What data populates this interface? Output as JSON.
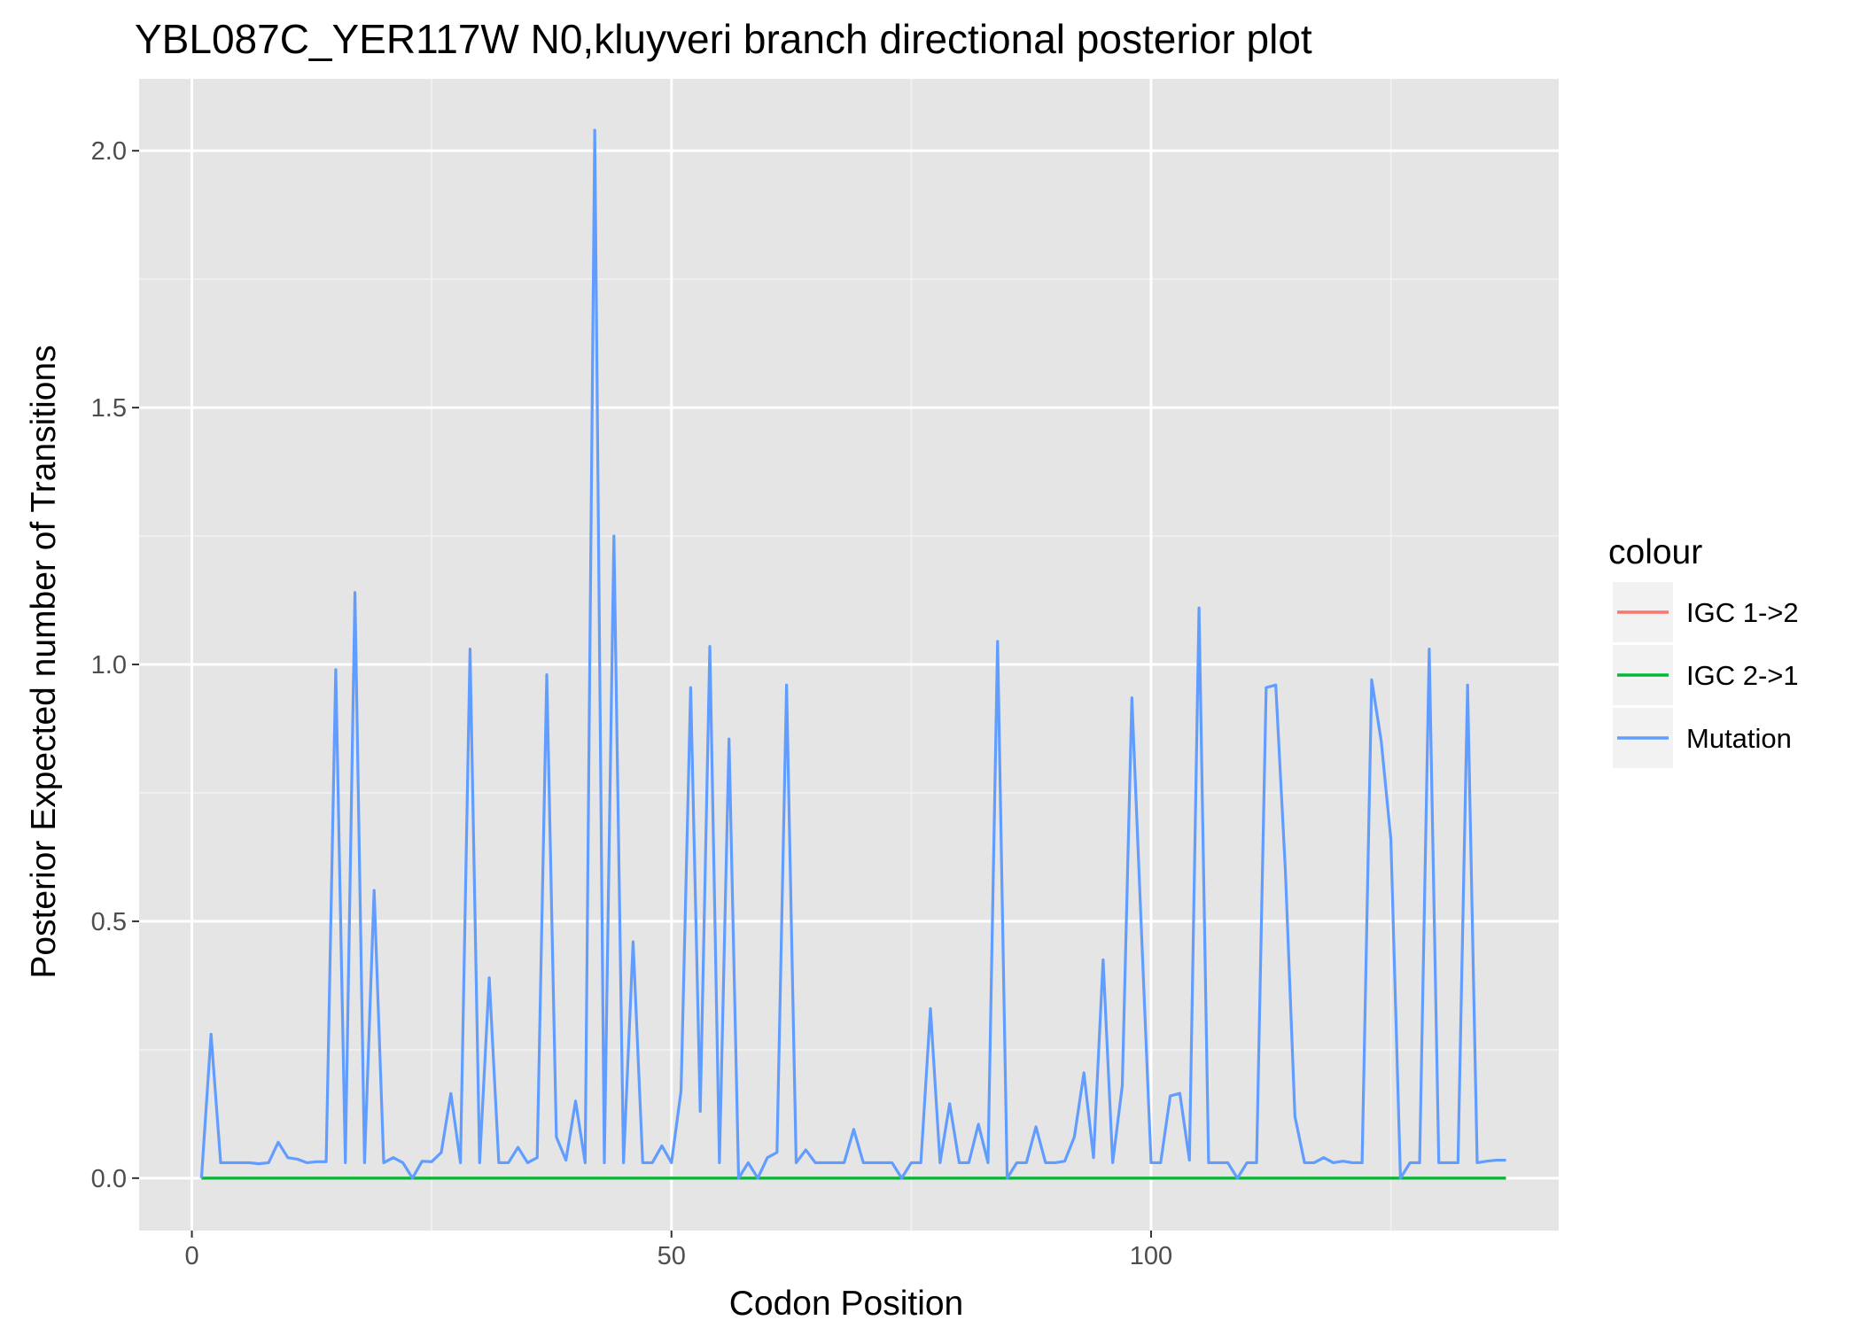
{
  "chart_data": {
    "type": "line",
    "title": "YBL087C_YER117W N0,kluyveri branch directional posterior plot",
    "xlabel": "Codon Position",
    "ylabel": "Posterior Expected number of Transitions",
    "xlim": [
      -5.5,
      142.5
    ],
    "ylim": [
      -0.102,
      2.14
    ],
    "x_ticks": [
      0,
      50,
      100
    ],
    "x_tick_labels": [
      "0",
      "50",
      "100"
    ],
    "y_ticks": [
      0.0,
      0.5,
      1.0,
      1.5,
      2.0
    ],
    "y_tick_labels": [
      "0.0",
      "0.5",
      "1.0",
      "1.5",
      "2.0"
    ],
    "grid": true,
    "legend_position": "right",
    "legend_title": "colour",
    "series": [
      {
        "name": "IGC 1->2",
        "color": "#F8766D",
        "x": [
          1,
          137
        ],
        "y": [
          0,
          0
        ]
      },
      {
        "name": "IGC 2->1",
        "color": "#00BA38",
        "x": [
          1,
          137
        ],
        "y": [
          0,
          0
        ]
      },
      {
        "name": "Mutation",
        "color": "#619CFF",
        "x": [
          1,
          2,
          3,
          4,
          5,
          6,
          7,
          8,
          9,
          10,
          11,
          12,
          13,
          14,
          15,
          16,
          17,
          18,
          19,
          20,
          21,
          22,
          23,
          24,
          25,
          26,
          27,
          28,
          29,
          30,
          31,
          32,
          33,
          34,
          35,
          36,
          37,
          38,
          39,
          40,
          41,
          42,
          43,
          44,
          45,
          46,
          47,
          48,
          49,
          50,
          51,
          52,
          53,
          54,
          55,
          56,
          57,
          58,
          59,
          60,
          61,
          62,
          63,
          64,
          65,
          66,
          67,
          68,
          69,
          70,
          71,
          72,
          73,
          74,
          75,
          76,
          77,
          78,
          79,
          80,
          81,
          82,
          83,
          84,
          85,
          86,
          87,
          88,
          89,
          90,
          91,
          92,
          93,
          94,
          95,
          96,
          97,
          98,
          99,
          100,
          101,
          102,
          103,
          104,
          105,
          106,
          107,
          108,
          109,
          110,
          111,
          112,
          113,
          114,
          115,
          116,
          117,
          118,
          119,
          120,
          121,
          122,
          123,
          124,
          125,
          126,
          127,
          128,
          129,
          130,
          131,
          132,
          133,
          134,
          135,
          136,
          137
        ],
        "y": [
          0.0,
          0.28,
          0.03,
          0.03,
          0.03,
          0.03,
          0.028,
          0.03,
          0.07,
          0.04,
          0.037,
          0.03,
          0.032,
          0.032,
          0.99,
          0.03,
          1.14,
          0.03,
          0.56,
          0.03,
          0.04,
          0.03,
          0.0,
          0.033,
          0.032,
          0.05,
          0.165,
          0.03,
          1.03,
          0.03,
          0.39,
          0.03,
          0.03,
          0.06,
          0.03,
          0.04,
          0.98,
          0.08,
          0.035,
          0.15,
          0.03,
          2.04,
          0.03,
          1.25,
          0.03,
          0.46,
          0.03,
          0.03,
          0.063,
          0.03,
          0.17,
          0.955,
          0.13,
          1.035,
          0.03,
          0.855,
          0.0,
          0.03,
          0.0,
          0.04,
          0.05,
          0.96,
          0.03,
          0.055,
          0.03,
          0.03,
          0.03,
          0.03,
          0.095,
          0.03,
          0.03,
          0.03,
          0.03,
          0.0,
          0.03,
          0.03,
          0.33,
          0.03,
          0.145,
          0.03,
          0.03,
          0.105,
          0.03,
          1.045,
          0.0,
          0.03,
          0.03,
          0.1,
          0.03,
          0.03,
          0.033,
          0.08,
          0.205,
          0.04,
          0.425,
          0.03,
          0.18,
          0.935,
          0.48,
          0.03,
          0.03,
          0.16,
          0.165,
          0.035,
          1.11,
          0.03,
          0.03,
          0.03,
          0.0,
          0.03,
          0.03,
          0.955,
          0.96,
          0.6,
          0.12,
          0.03,
          0.03,
          0.04,
          0.03,
          0.033,
          0.03,
          0.03,
          0.97,
          0.85,
          0.66,
          0.0,
          0.03,
          0.03,
          1.03,
          0.03,
          0.03,
          0.03,
          0.96,
          0.03,
          0.033,
          0.035,
          0.035
        ]
      }
    ]
  }
}
